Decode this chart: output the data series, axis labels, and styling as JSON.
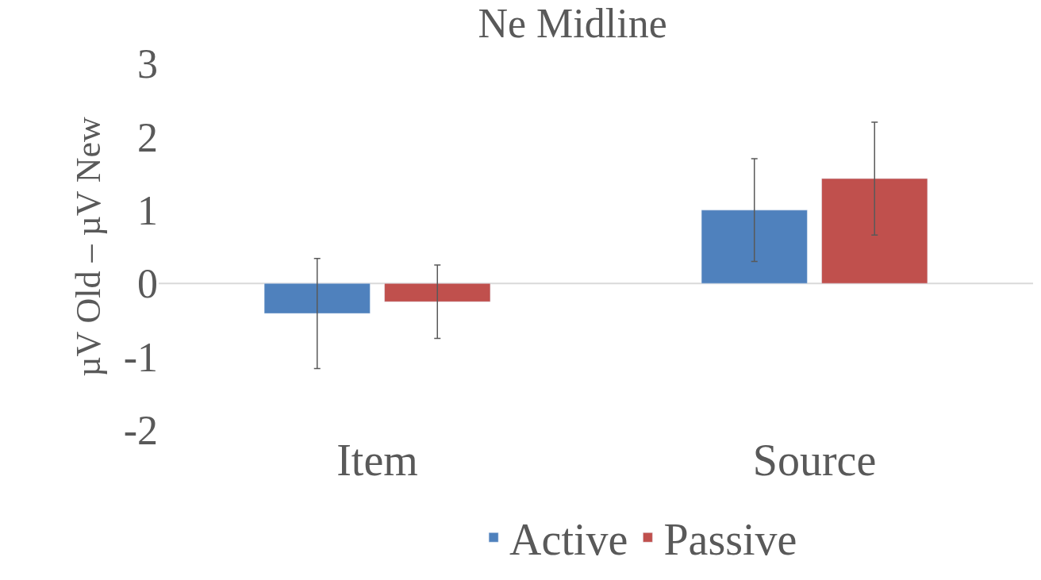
{
  "chart_data": {
    "type": "bar",
    "title": "Ne Midline",
    "ylabel": "µV Old – µV New",
    "categories": [
      "Item",
      "Source"
    ],
    "series": [
      {
        "name": "Active",
        "color": "#4f81bd",
        "values": [
          -0.41,
          1.0
        ],
        "errors": [
          0.75,
          0.7
        ]
      },
      {
        "name": "Passive",
        "color": "#c0504d",
        "values": [
          -0.25,
          1.43
        ],
        "errors": [
          0.5,
          0.77
        ]
      }
    ],
    "ref_lines": [
      {
        "axis": "y",
        "value": 0,
        "color": "#d9d9d9"
      }
    ],
    "ylim": [
      -2,
      3
    ],
    "yticks": [
      -2,
      -1,
      0,
      1,
      2,
      3
    ],
    "grid": false,
    "legend": "bottom"
  }
}
